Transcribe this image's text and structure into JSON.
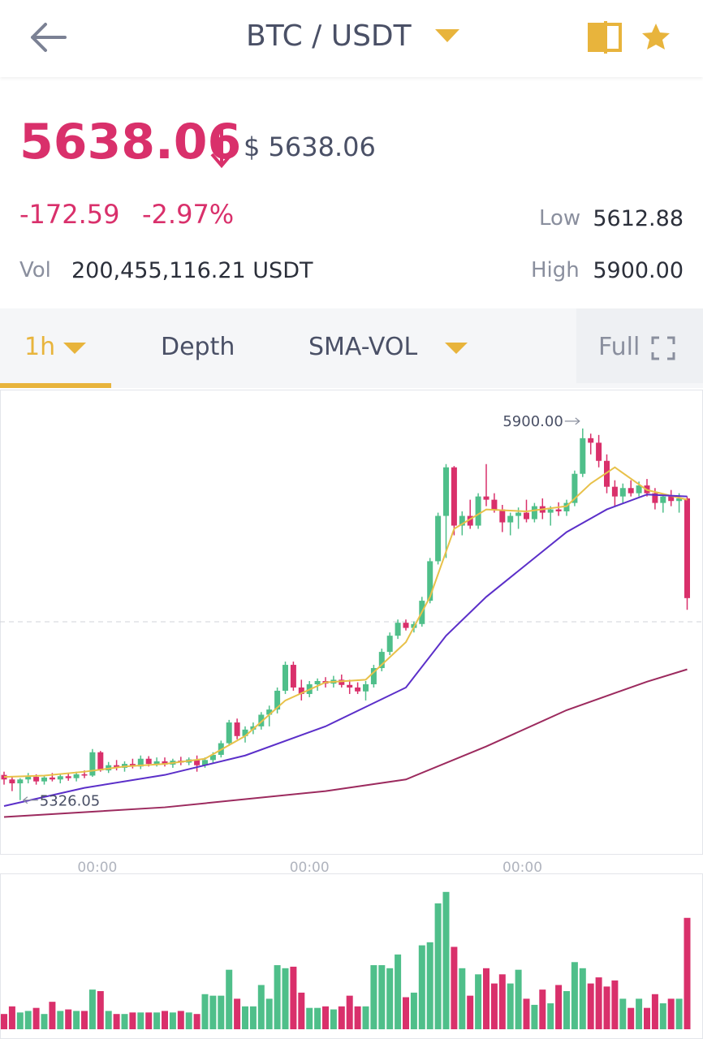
{
  "header": {
    "pair": "BTC / USDT"
  },
  "ticker": {
    "price": "5638.06",
    "usd_price": "$ 5638.06",
    "change": "-172.59",
    "change_pct": "-2.97%",
    "low_label": "Low",
    "low": "5612.88",
    "high_label": "High",
    "high": "5900.00",
    "vol_label": "Vol",
    "vol": "200,455,116.21 USDT"
  },
  "tabs": [
    "1h",
    "Depth",
    "SMA-VOL",
    "Full"
  ],
  "chart_data": {
    "type": "candlestick",
    "up_color": "#4fbf8a",
    "down_color": "#d9306b",
    "ylim": [
      5243,
      5960
    ],
    "vlim": [
      0,
      200
    ],
    "candles": [
      [
        5365,
        5370,
        5350,
        5358
      ],
      [
        5358,
        5362,
        5340,
        5352
      ],
      [
        5352,
        5360,
        5326.05,
        5358
      ],
      [
        5358,
        5368,
        5352,
        5362
      ],
      [
        5362,
        5366,
        5350,
        5355
      ],
      [
        5355,
        5364,
        5350,
        5361
      ],
      [
        5361,
        5368,
        5355,
        5358
      ],
      [
        5358,
        5366,
        5352,
        5363
      ],
      [
        5363,
        5368,
        5356,
        5360
      ],
      [
        5360,
        5370,
        5355,
        5366
      ],
      [
        5366,
        5372,
        5360,
        5364
      ],
      [
        5364,
        5405,
        5362,
        5400
      ],
      [
        5400,
        5402,
        5370,
        5372
      ],
      [
        5372,
        5385,
        5368,
        5380
      ],
      [
        5380,
        5388,
        5372,
        5376
      ],
      [
        5376,
        5386,
        5370,
        5382
      ],
      [
        5382,
        5390,
        5375,
        5378
      ],
      [
        5378,
        5395,
        5374,
        5390
      ],
      [
        5390,
        5394,
        5378,
        5382
      ],
      [
        5382,
        5392,
        5378,
        5386
      ],
      [
        5386,
        5392,
        5378,
        5381
      ],
      [
        5381,
        5390,
        5376,
        5387
      ],
      [
        5387,
        5393,
        5380,
        5384
      ],
      [
        5384,
        5392,
        5380,
        5389
      ],
      [
        5389,
        5395,
        5370,
        5380
      ],
      [
        5380,
        5392,
        5376,
        5388
      ],
      [
        5388,
        5400,
        5384,
        5396
      ],
      [
        5396,
        5418,
        5392,
        5414
      ],
      [
        5414,
        5450,
        5410,
        5446
      ],
      [
        5446,
        5452,
        5420,
        5425
      ],
      [
        5425,
        5440,
        5415,
        5435
      ],
      [
        5435,
        5446,
        5428,
        5440
      ],
      [
        5440,
        5462,
        5435,
        5458
      ],
      [
        5458,
        5472,
        5440,
        5466
      ],
      [
        5466,
        5500,
        5460,
        5495
      ],
      [
        5495,
        5540,
        5490,
        5535
      ],
      [
        5535,
        5540,
        5495,
        5500
      ],
      [
        5500,
        5512,
        5480,
        5490
      ],
      [
        5490,
        5510,
        5485,
        5505
      ],
      [
        5505,
        5514,
        5495,
        5510
      ],
      [
        5510,
        5516,
        5500,
        5506
      ],
      [
        5506,
        5518,
        5500,
        5512
      ],
      [
        5512,
        5520,
        5500,
        5504
      ],
      [
        5504,
        5512,
        5490,
        5500
      ],
      [
        5500,
        5508,
        5490,
        5494
      ],
      [
        5494,
        5510,
        5480,
        5505
      ],
      [
        5505,
        5535,
        5500,
        5530
      ],
      [
        5530,
        5560,
        5525,
        5555
      ],
      [
        5555,
        5585,
        5550,
        5580
      ],
      [
        5580,
        5605,
        5575,
        5600
      ],
      [
        5600,
        5605,
        5588,
        5592
      ],
      [
        5592,
        5602,
        5585,
        5598
      ],
      [
        5598,
        5640,
        5594,
        5634
      ],
      [
        5634,
        5700,
        5630,
        5695
      ],
      [
        5695,
        5770,
        5690,
        5765
      ],
      [
        5765,
        5845,
        5700,
        5840
      ],
      [
        5840,
        5842,
        5735,
        5750
      ],
      [
        5750,
        5772,
        5735,
        5765
      ],
      [
        5765,
        5790,
        5745,
        5750
      ],
      [
        5750,
        5800,
        5745,
        5795
      ],
      [
        5795,
        5845,
        5780,
        5790
      ],
      [
        5790,
        5800,
        5770,
        5775
      ],
      [
        5775,
        5782,
        5740,
        5755
      ],
      [
        5755,
        5770,
        5735,
        5765
      ],
      [
        5765,
        5778,
        5745,
        5770
      ],
      [
        5770,
        5790,
        5755,
        5760
      ],
      [
        5760,
        5785,
        5755,
        5780
      ],
      [
        5780,
        5792,
        5760,
        5770
      ],
      [
        5770,
        5780,
        5750,
        5775
      ],
      [
        5775,
        5786,
        5765,
        5772
      ],
      [
        5772,
        5790,
        5765,
        5785
      ],
      [
        5785,
        5835,
        5780,
        5830
      ],
      [
        5830,
        5900,
        5825,
        5885
      ],
      [
        5885,
        5892,
        5860,
        5878
      ],
      [
        5878,
        5890,
        5840,
        5850
      ],
      [
        5850,
        5860,
        5800,
        5810
      ],
      [
        5810,
        5820,
        5780,
        5795
      ],
      [
        5795,
        5815,
        5785,
        5808
      ],
      [
        5808,
        5820,
        5795,
        5800
      ],
      [
        5800,
        5818,
        5795,
        5812
      ],
      [
        5812,
        5822,
        5795,
        5800
      ],
      [
        5800,
        5808,
        5775,
        5785
      ],
      [
        5785,
        5800,
        5770,
        5795
      ],
      [
        5795,
        5805,
        5780,
        5788
      ],
      [
        5788,
        5800,
        5770,
        5792
      ],
      [
        5792,
        5795,
        5620,
        5638.06
      ]
    ],
    "volumes": [
      20,
      30,
      22,
      24,
      28,
      20,
      36,
      24,
      26,
      24,
      24,
      52,
      50,
      24,
      20,
      20,
      22,
      22,
      22,
      22,
      24,
      22,
      24,
      22,
      20,
      46,
      44,
      44,
      78,
      40,
      30,
      30,
      58,
      40,
      84,
      80,
      82,
      48,
      28,
      28,
      30,
      26,
      30,
      44,
      30,
      30,
      84,
      84,
      80,
      98,
      42,
      48,
      110,
      114,
      165,
      180,
      108,
      80,
      44,
      72,
      80,
      60,
      72,
      60,
      78,
      40,
      32,
      52,
      34,
      58,
      50,
      88,
      80,
      60,
      68,
      56,
      64,
      40,
      28,
      40,
      28,
      46,
      34,
      40,
      40,
      146
    ],
    "ma_lines": [
      {
        "color": "#e8c14a",
        "x": [
          0,
          5,
          10,
          15,
          20,
          25,
          30,
          35,
          40,
          45,
          50,
          53,
          56,
          60,
          65,
          70,
          73,
          76,
          80,
          85
        ],
        "values": [
          5362,
          5364,
          5370,
          5378,
          5382,
          5390,
          5425,
          5480,
          5508,
          5512,
          5570,
          5640,
          5745,
          5775,
          5772,
          5780,
          5815,
          5840,
          5805,
          5790
        ]
      },
      {
        "color": "#5b2fc9",
        "x": [
          0,
          10,
          20,
          30,
          40,
          50,
          55,
          60,
          65,
          70,
          75,
          80,
          85
        ],
        "values": [
          5317,
          5345,
          5365,
          5395,
          5440,
          5500,
          5580,
          5640,
          5690,
          5740,
          5775,
          5798,
          5795
        ]
      },
      {
        "color": "#9c2a5e",
        "x": [
          0,
          20,
          40,
          50,
          60,
          70,
          80,
          85
        ],
        "values": [
          5300,
          5315,
          5340,
          5358,
          5409,
          5465,
          5509,
          5528
        ]
      }
    ],
    "time_ticks": [
      {
        "value": 11.6,
        "label": "00:00"
      },
      {
        "value": 38,
        "label": "00:00"
      },
      {
        "value": 64.5,
        "label": "00:00"
      }
    ],
    "max_label": {
      "x": 72,
      "value": 5900,
      "label": "5900.00"
    },
    "min_label": {
      "x": 2,
      "value": 5326.05,
      "label": "5326.05"
    }
  }
}
